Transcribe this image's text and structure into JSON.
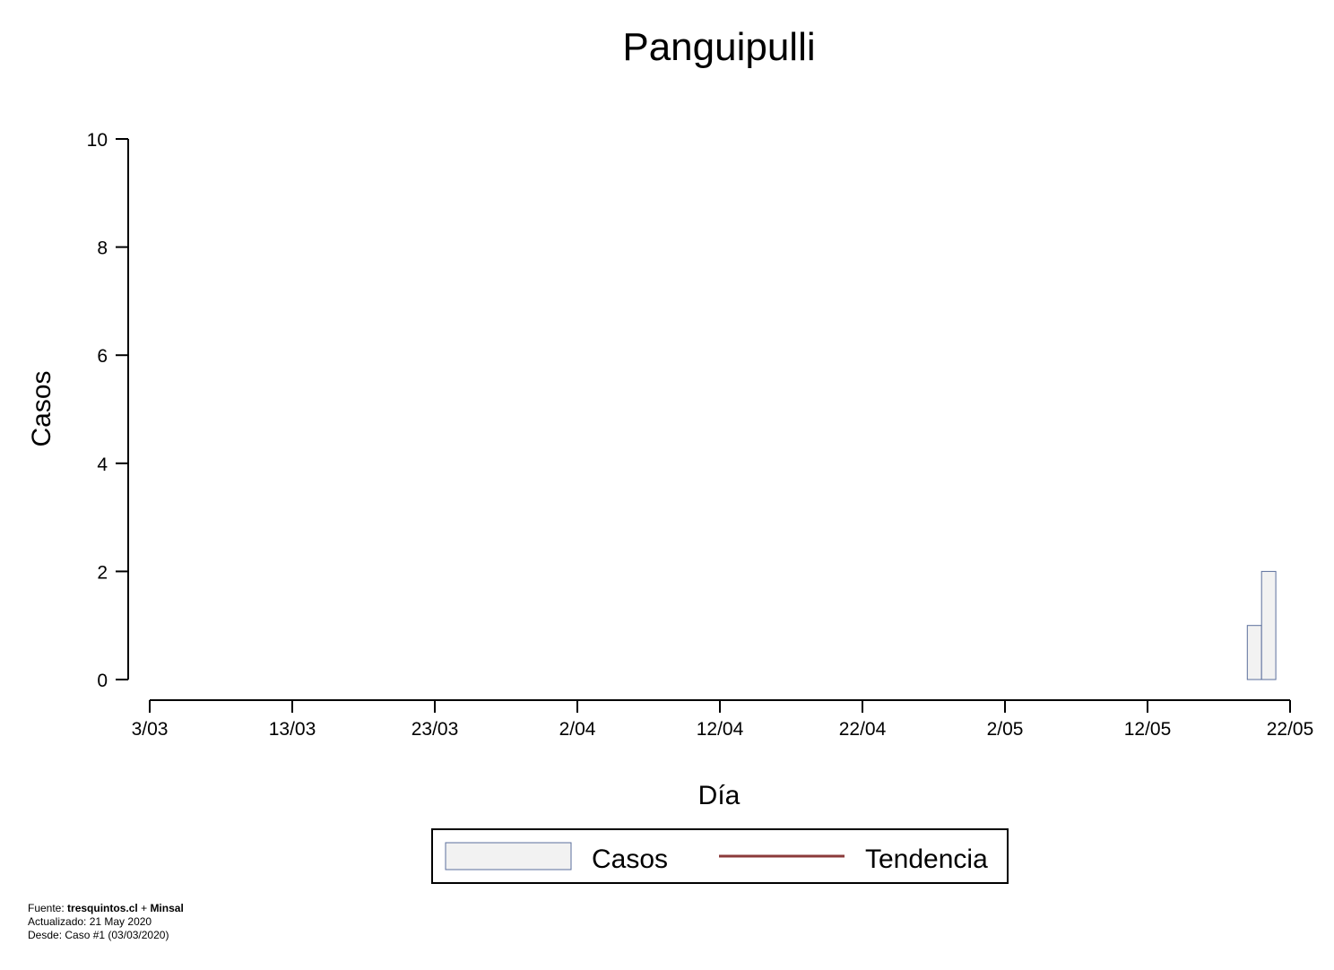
{
  "chart_data": {
    "type": "bar",
    "title": "Panguipulli",
    "xlabel": "Día",
    "ylabel": "Casos",
    "x_ticks": [
      "3/03",
      "13/03",
      "23/03",
      "2/04",
      "12/04",
      "22/04",
      "2/05",
      "12/05",
      "22/05"
    ],
    "y_ticks": [
      "0",
      "2",
      "4",
      "6",
      "8",
      "10"
    ],
    "ylim": [
      0,
      10
    ],
    "xlim": [
      "2020-03-03",
      "2020-05-22"
    ],
    "series": [
      {
        "name": "Casos",
        "points": [
          {
            "date": "2020-05-19",
            "value": 1
          },
          {
            "date": "2020-05-20",
            "value": 2
          }
        ]
      },
      {
        "name": "Tendencia",
        "points": []
      }
    ],
    "legend": {
      "position": "bottom",
      "items": [
        "Casos",
        "Tendencia"
      ]
    },
    "grid": false
  },
  "colors": {
    "bar_fill": "#f2f2f2",
    "bar_stroke": "#5b6f9c",
    "trend_line": "#8b3a3a",
    "axis": "#000000"
  },
  "footer": {
    "source_label": "Fuente:",
    "source_site": "tresquintos.cl",
    "source_plus": "+",
    "source_org": "Minsal",
    "updated": "Actualizado: 21 May 2020",
    "since": "Desde: Caso #1  (03/03/2020)"
  }
}
